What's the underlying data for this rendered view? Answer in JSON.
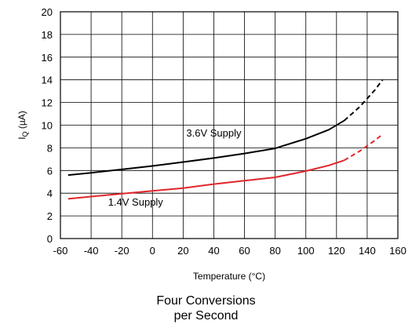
{
  "chart_data": {
    "type": "line",
    "xlabel": "Temperature (°C)",
    "ylabel": "I",
    "ylabel_subscript": "Q",
    "ylabel_unit": " (µA)",
    "xlim": [
      -60,
      160
    ],
    "ylim": [
      0,
      20
    ],
    "xticks": [
      -60,
      -40,
      -20,
      0,
      20,
      40,
      60,
      80,
      100,
      120,
      140,
      160
    ],
    "yticks": [
      0,
      2,
      4,
      6,
      8,
      10,
      12,
      14,
      16,
      18,
      20
    ],
    "grid": true,
    "legend": "none",
    "series": [
      {
        "name": "3.6V Supply",
        "color": "#000000",
        "label_at": [
          40,
          9.0
        ],
        "points": [
          [
            -55,
            5.6
          ],
          [
            -40,
            5.8
          ],
          [
            -20,
            6.1
          ],
          [
            0,
            6.4
          ],
          [
            20,
            6.75
          ],
          [
            40,
            7.1
          ],
          [
            60,
            7.5
          ],
          [
            80,
            7.95
          ],
          [
            100,
            8.8
          ],
          [
            115,
            9.6
          ],
          [
            125,
            10.4
          ],
          [
            135,
            11.6
          ],
          [
            145,
            13.1
          ],
          [
            150,
            14.0
          ]
        ],
        "dashed_from_x": 125
      },
      {
        "name": "1.4V Supply",
        "color": "#e0262c",
        "label_at": [
          -11,
          2.9
        ],
        "points": [
          [
            -55,
            3.5
          ],
          [
            -40,
            3.7
          ],
          [
            -20,
            3.95
          ],
          [
            0,
            4.2
          ],
          [
            20,
            4.45
          ],
          [
            40,
            4.8
          ],
          [
            60,
            5.1
          ],
          [
            80,
            5.4
          ],
          [
            100,
            5.95
          ],
          [
            115,
            6.45
          ],
          [
            125,
            6.9
          ],
          [
            135,
            7.7
          ],
          [
            145,
            8.65
          ],
          [
            150,
            9.2
          ]
        ],
        "dashed_from_x": 125
      }
    ]
  },
  "caption": {
    "line1": "Four Conversions",
    "line2": "per Second"
  }
}
